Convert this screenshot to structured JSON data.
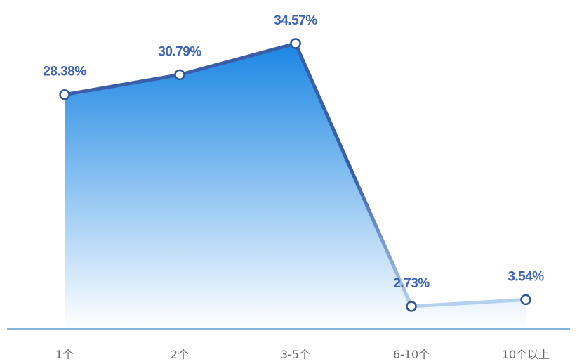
{
  "chart_data": {
    "type": "area",
    "categories": [
      "1个",
      "2个",
      "3-5个",
      "6-10个",
      "10个以上"
    ],
    "values": [
      28.38,
      30.79,
      34.57,
      2.73,
      3.54
    ],
    "value_labels": [
      "28.38%",
      "30.79%",
      "34.57%",
      "2.73%",
      "3.54%"
    ],
    "ylim": [
      0,
      36
    ],
    "grid": false,
    "colors": {
      "fill_top": "#1a86e3",
      "fill_bottom": "#ffffff",
      "line_dark": "#3a5ea8",
      "line_light": "#b5d0ec",
      "marker_stroke": "#2f5597",
      "marker_fill": "#ffffff",
      "label": "#3d63b5",
      "axis": "#5b9bd5",
      "tick": "#666666"
    }
  }
}
